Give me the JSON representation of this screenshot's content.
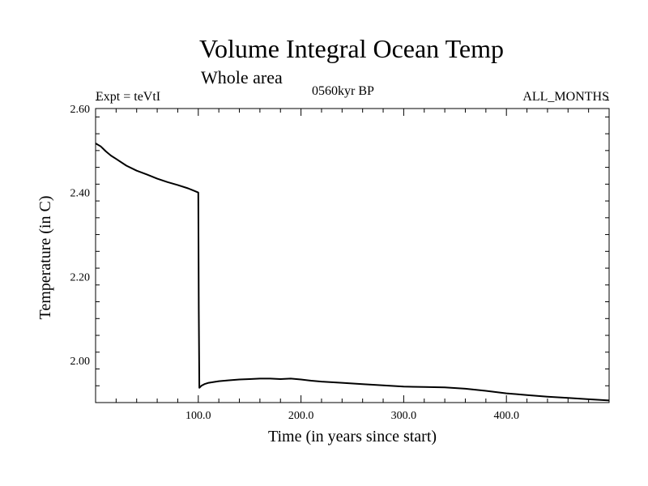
{
  "chart_data": {
    "type": "line",
    "title": "Volume Integral Ocean Temp",
    "subtitle": "Whole area",
    "annotations": {
      "left": "Expt = teVtI",
      "center": "0560kyr BP",
      "right": "ALL_MONTHS"
    },
    "xlabel": "Time (in years since start)",
    "ylabel": "Temperature (in C)",
    "xlim": [
      0,
      500
    ],
    "ylim": [
      1.9,
      2.6
    ],
    "xticks": [
      100,
      200,
      300,
      400
    ],
    "xtick_labels": [
      "100.0",
      "200.0",
      "300.0",
      "400.0"
    ],
    "yticks": [
      2.0,
      2.2,
      2.4,
      2.6
    ],
    "ytick_labels": [
      "2.00",
      "2.20",
      "2.40",
      "2.60"
    ],
    "grid": false,
    "series": [
      {
        "x": [
          0,
          5,
          10,
          15,
          20,
          30,
          40,
          50,
          60,
          70,
          80,
          90,
          95,
          100,
          100.5,
          101,
          103,
          106,
          110,
          115,
          120,
          130,
          140,
          150,
          160,
          170,
          180,
          190,
          200,
          210,
          220,
          240,
          260,
          280,
          300,
          320,
          340,
          360,
          380,
          400,
          420,
          440,
          460,
          480,
          500
        ],
        "y": [
          2.517,
          2.51,
          2.498,
          2.488,
          2.48,
          2.464,
          2.452,
          2.443,
          2.433,
          2.425,
          2.418,
          2.41,
          2.405,
          2.4,
          2.12,
          1.935,
          1.94,
          1.944,
          1.947,
          1.949,
          1.951,
          1.953,
          1.955,
          1.956,
          1.957,
          1.957,
          1.956,
          1.957,
          1.955,
          1.952,
          1.95,
          1.947,
          1.944,
          1.941,
          1.938,
          1.937,
          1.936,
          1.933,
          1.928,
          1.922,
          1.918,
          1.914,
          1.911,
          1.908,
          1.905
        ],
        "color": "#000000"
      }
    ]
  }
}
